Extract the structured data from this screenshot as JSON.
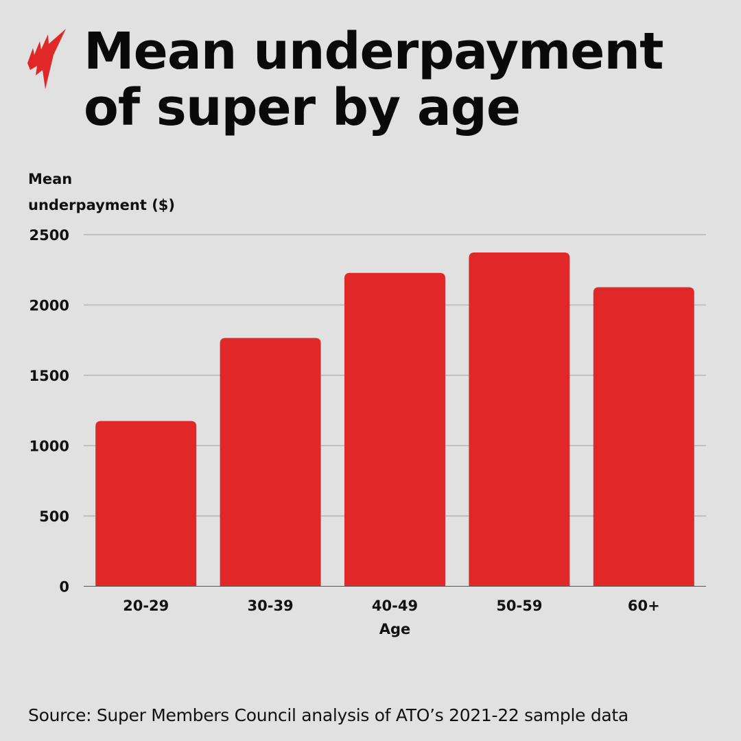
{
  "header": {
    "title_line1": "Mean underpayment",
    "title_line2": "of super by age",
    "logo": "SBS logo (red flame)"
  },
  "chart_data": {
    "type": "bar",
    "title": "Mean underpayment of super by age",
    "ylabel_line1": "Mean",
    "ylabel_line2": "underpayment ($)",
    "xlabel": "Age",
    "categories": [
      "20-29",
      "30-39",
      "40-49",
      "50-59",
      "60+"
    ],
    "values": [
      1175,
      1765,
      2228,
      2373,
      2126
    ],
    "ylim": [
      0,
      2500
    ],
    "yticks": [
      0,
      500,
      1000,
      1500,
      2000,
      2500
    ],
    "grid": true,
    "bar_color": "#e02828"
  },
  "footer": {
    "source": "Source: Super Members Council analysis of ATO’s 2021-22 sample data"
  }
}
